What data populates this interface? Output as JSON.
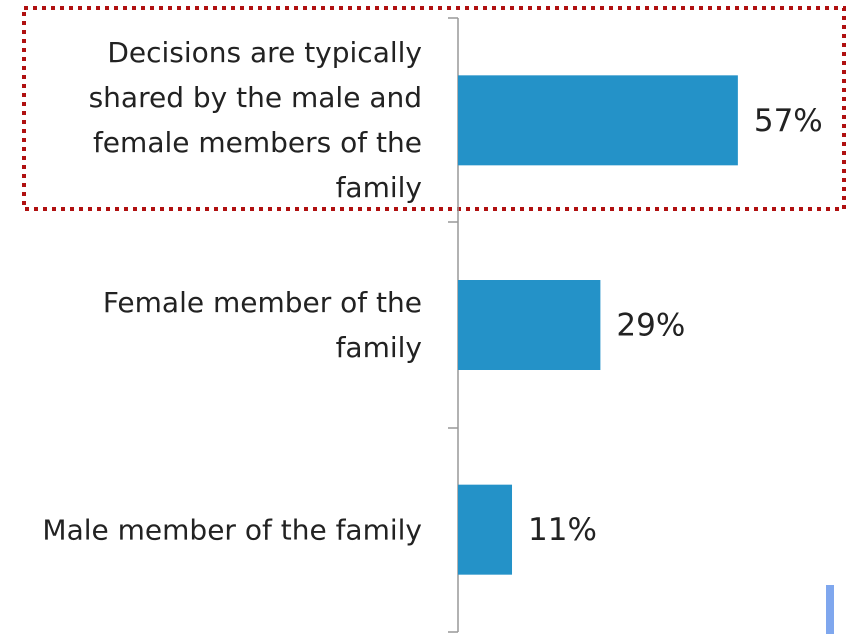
{
  "chart_data": {
    "type": "bar",
    "orientation": "horizontal",
    "categories": [
      "Decisions are typically shared by the male and female members of the family",
      "Female member of the family",
      "Male member of the family"
    ],
    "values": [
      57,
      29,
      11
    ],
    "value_labels": [
      "57%",
      "29%",
      "11%"
    ],
    "color": "#2492c8"
  }
}
